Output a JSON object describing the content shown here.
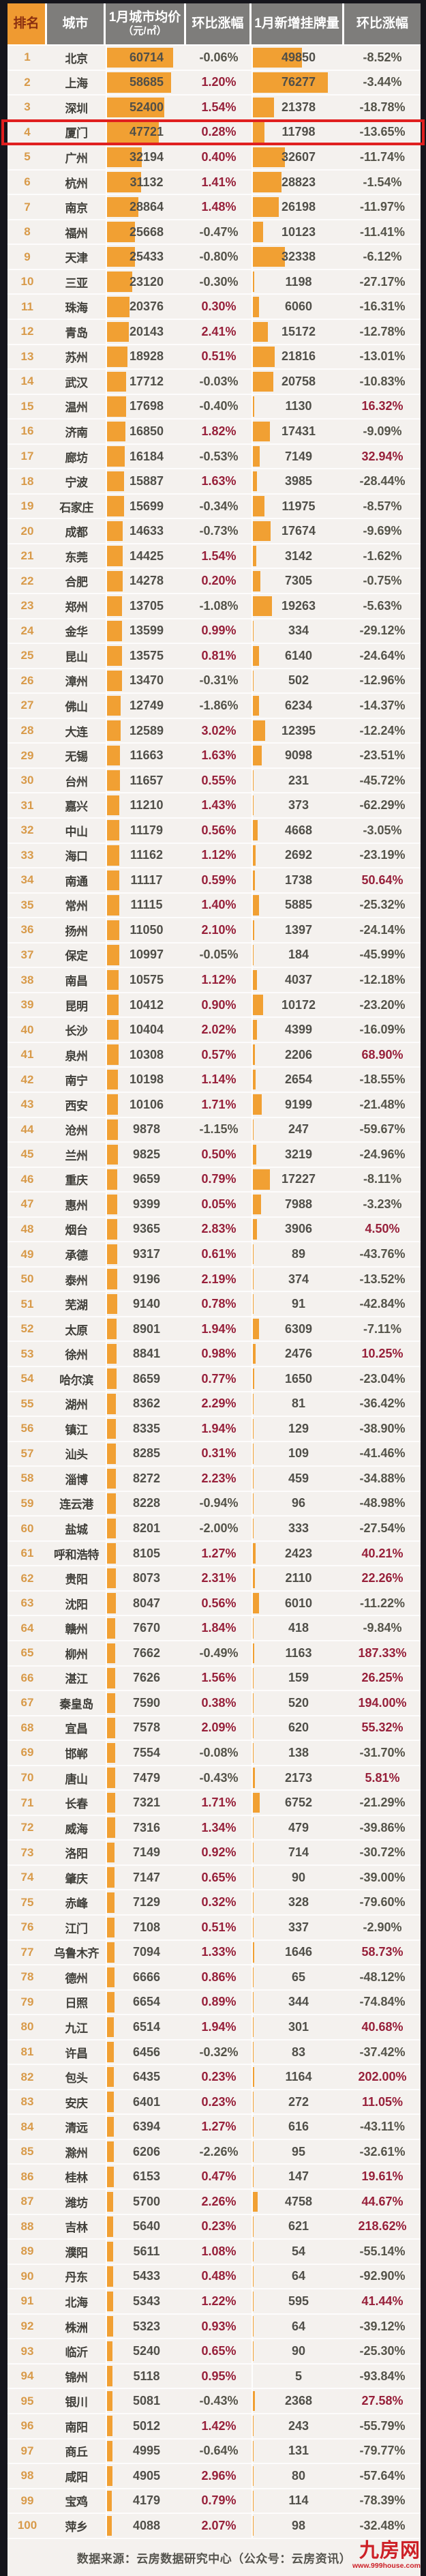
{
  "table": {
    "header": [
      {
        "label": "排名"
      },
      {
        "label": "城市"
      },
      {
        "label": "1月城市均价",
        "sub": "（元/㎡）"
      },
      {
        "label": "环比涨幅"
      },
      {
        "label": "1月新增挂牌量"
      },
      {
        "label": "环比涨幅"
      }
    ]
  },
  "chart_data": {
    "type": "table",
    "columns": [
      "排名",
      "城市",
      "1月城市均价(元/㎡)",
      "环比涨幅",
      "1月新增挂牌量",
      "环比涨幅"
    ],
    "highlighted_rank": 4,
    "rows": [
      [
        1,
        "北京",
        60714,
        "-0.06%",
        49850,
        "-8.52%"
      ],
      [
        2,
        "上海",
        58685,
        "1.20%",
        76277,
        "-3.44%"
      ],
      [
        3,
        "深圳",
        52400,
        "1.54%",
        21378,
        "-18.78%"
      ],
      [
        4,
        "厦门",
        47721,
        "0.28%",
        11798,
        "-13.65%"
      ],
      [
        5,
        "广州",
        32194,
        "0.40%",
        32607,
        "-11.74%"
      ],
      [
        6,
        "杭州",
        31132,
        "1.41%",
        28823,
        "-1.54%"
      ],
      [
        7,
        "南京",
        28864,
        "1.48%",
        26198,
        "-11.97%"
      ],
      [
        8,
        "福州",
        25668,
        "-0.47%",
        10123,
        "-11.41%"
      ],
      [
        9,
        "天津",
        25433,
        "-0.80%",
        32338,
        "-6.12%"
      ],
      [
        10,
        "三亚",
        23120,
        "-0.30%",
        1198,
        "-27.17%"
      ],
      [
        11,
        "珠海",
        20376,
        "0.30%",
        6060,
        "-16.31%"
      ],
      [
        12,
        "青岛",
        20143,
        "2.41%",
        15172,
        "-12.78%"
      ],
      [
        13,
        "苏州",
        18928,
        "0.51%",
        21816,
        "-13.01%"
      ],
      [
        14,
        "武汉",
        17712,
        "-0.03%",
        20758,
        "-10.83%"
      ],
      [
        15,
        "温州",
        17698,
        "-0.40%",
        1130,
        "16.32%"
      ],
      [
        16,
        "济南",
        16850,
        "1.82%",
        17431,
        "-9.09%"
      ],
      [
        17,
        "廊坊",
        16184,
        "-0.53%",
        7149,
        "32.94%"
      ],
      [
        18,
        "宁波",
        15887,
        "1.63%",
        3985,
        "-28.44%"
      ],
      [
        19,
        "石家庄",
        15699,
        "-0.34%",
        11975,
        "-8.57%"
      ],
      [
        20,
        "成都",
        14633,
        "-0.73%",
        17674,
        "-9.69%"
      ],
      [
        21,
        "东莞",
        14425,
        "1.54%",
        3142,
        "-1.62%"
      ],
      [
        22,
        "合肥",
        14278,
        "0.20%",
        7305,
        "-0.75%"
      ],
      [
        23,
        "郑州",
        13705,
        "-1.08%",
        19263,
        "-5.63%"
      ],
      [
        24,
        "金华",
        13599,
        "0.99%",
        334,
        "-29.12%"
      ],
      [
        25,
        "昆山",
        13575,
        "0.81%",
        6140,
        "-24.64%"
      ],
      [
        26,
        "漳州",
        13470,
        "-0.31%",
        502,
        "-12.96%"
      ],
      [
        27,
        "佛山",
        12749,
        "-1.86%",
        6234,
        "-14.37%"
      ],
      [
        28,
        "大连",
        12589,
        "3.02%",
        12395,
        "-12.24%"
      ],
      [
        29,
        "无锡",
        11663,
        "1.63%",
        9098,
        "-23.51%"
      ],
      [
        30,
        "台州",
        11657,
        "0.55%",
        231,
        "-45.72%"
      ],
      [
        31,
        "嘉兴",
        11210,
        "1.43%",
        373,
        "-62.29%"
      ],
      [
        32,
        "中山",
        11179,
        "0.56%",
        4668,
        "-3.05%"
      ],
      [
        33,
        "海口",
        11162,
        "1.12%",
        2692,
        "-23.19%"
      ],
      [
        34,
        "南通",
        11117,
        "0.59%",
        1738,
        "50.64%"
      ],
      [
        35,
        "常州",
        11115,
        "1.40%",
        5885,
        "-25.32%"
      ],
      [
        36,
        "扬州",
        11050,
        "2.10%",
        1397,
        "-24.14%"
      ],
      [
        37,
        "保定",
        10997,
        "-0.05%",
        184,
        "-45.99%"
      ],
      [
        38,
        "南昌",
        10575,
        "1.12%",
        4037,
        "-12.18%"
      ],
      [
        39,
        "昆明",
        10412,
        "0.90%",
        10172,
        "-23.20%"
      ],
      [
        40,
        "长沙",
        10404,
        "2.02%",
        4399,
        "-16.09%"
      ],
      [
        41,
        "泉州",
        10308,
        "0.57%",
        2206,
        "68.90%"
      ],
      [
        42,
        "南宁",
        10198,
        "1.14%",
        2654,
        "-18.55%"
      ],
      [
        43,
        "西安",
        10106,
        "1.71%",
        9199,
        "-21.48%"
      ],
      [
        44,
        "沧州",
        9878,
        "-1.15%",
        247,
        "-59.67%"
      ],
      [
        45,
        "兰州",
        9825,
        "0.50%",
        3219,
        "-24.96%"
      ],
      [
        46,
        "重庆",
        9659,
        "0.79%",
        17227,
        "-8.11%"
      ],
      [
        47,
        "惠州",
        9399,
        "0.05%",
        7988,
        "-3.23%"
      ],
      [
        48,
        "烟台",
        9365,
        "2.83%",
        3906,
        "4.50%"
      ],
      [
        49,
        "承德",
        9317,
        "0.61%",
        89,
        "-43.76%"
      ],
      [
        50,
        "泰州",
        9196,
        "2.19%",
        374,
        "-13.52%"
      ],
      [
        51,
        "芜湖",
        9140,
        "0.78%",
        91,
        "-42.84%"
      ],
      [
        52,
        "太原",
        8901,
        "1.94%",
        6309,
        "-7.11%"
      ],
      [
        53,
        "徐州",
        8841,
        "0.98%",
        2476,
        "10.25%"
      ],
      [
        54,
        "哈尔滨",
        8659,
        "0.77%",
        1650,
        "-23.04%"
      ],
      [
        55,
        "湖州",
        8362,
        "2.29%",
        81,
        "-36.42%"
      ],
      [
        56,
        "镇江",
        8335,
        "1.94%",
        129,
        "-38.90%"
      ],
      [
        57,
        "汕头",
        8285,
        "0.31%",
        109,
        "-41.46%"
      ],
      [
        58,
        "淄博",
        8272,
        "2.23%",
        459,
        "-34.88%"
      ],
      [
        59,
        "连云港",
        8228,
        "-0.94%",
        96,
        "-48.98%"
      ],
      [
        60,
        "盐城",
        8201,
        "-2.00%",
        333,
        "-27.54%"
      ],
      [
        61,
        "呼和浩特",
        8105,
        "1.27%",
        2423,
        "40.21%"
      ],
      [
        62,
        "贵阳",
        8073,
        "2.31%",
        2110,
        "22.26%"
      ],
      [
        63,
        "沈阳",
        8047,
        "0.56%",
        6010,
        "-11.22%"
      ],
      [
        64,
        "赣州",
        7670,
        "1.84%",
        418,
        "-9.84%"
      ],
      [
        65,
        "柳州",
        7662,
        "-0.49%",
        1163,
        "187.33%"
      ],
      [
        66,
        "湛江",
        7626,
        "1.56%",
        159,
        "26.25%"
      ],
      [
        67,
        "秦皇岛",
        7590,
        "0.38%",
        520,
        "194.00%"
      ],
      [
        68,
        "宜昌",
        7578,
        "2.09%",
        620,
        "55.32%"
      ],
      [
        69,
        "邯郸",
        7554,
        "-0.08%",
        138,
        "-31.70%"
      ],
      [
        70,
        "唐山",
        7479,
        "-0.43%",
        2173,
        "5.81%"
      ],
      [
        71,
        "长春",
        7321,
        "1.71%",
        6752,
        "-21.29%"
      ],
      [
        72,
        "威海",
        7316,
        "1.34%",
        479,
        "-39.86%"
      ],
      [
        73,
        "洛阳",
        7149,
        "0.92%",
        714,
        "-30.72%"
      ],
      [
        74,
        "肇庆",
        7147,
        "0.65%",
        90,
        "-39.00%"
      ],
      [
        75,
        "赤峰",
        7129,
        "0.32%",
        328,
        "-79.60%"
      ],
      [
        76,
        "江门",
        7108,
        "0.51%",
        337,
        "-2.90%"
      ],
      [
        77,
        "乌鲁木齐",
        7094,
        "1.33%",
        1646,
        "58.73%"
      ],
      [
        78,
        "德州",
        6666,
        "0.86%",
        65,
        "-48.12%"
      ],
      [
        79,
        "日照",
        6654,
        "0.89%",
        344,
        "-74.84%"
      ],
      [
        80,
        "九江",
        6514,
        "1.94%",
        301,
        "40.68%"
      ],
      [
        81,
        "许昌",
        6456,
        "-0.32%",
        83,
        "-37.42%"
      ],
      [
        82,
        "包头",
        6435,
        "0.23%",
        1164,
        "202.00%"
      ],
      [
        83,
        "安庆",
        6401,
        "0.23%",
        272,
        "11.05%"
      ],
      [
        84,
        "清远",
        6394,
        "1.27%",
        616,
        "-43.11%"
      ],
      [
        85,
        "滁州",
        6206,
        "-2.26%",
        95,
        "-32.61%"
      ],
      [
        86,
        "桂林",
        6153,
        "0.47%",
        147,
        "19.61%"
      ],
      [
        87,
        "潍坊",
        5700,
        "2.26%",
        4758,
        "44.67%"
      ],
      [
        88,
        "吉林",
        5640,
        "0.23%",
        621,
        "218.62%"
      ],
      [
        89,
        "濮阳",
        5611,
        "1.08%",
        54,
        "-55.14%"
      ],
      [
        90,
        "丹东",
        5433,
        "0.48%",
        64,
        "-92.90%"
      ],
      [
        91,
        "北海",
        5343,
        "1.22%",
        595,
        "41.44%"
      ],
      [
        92,
        "株洲",
        5323,
        "0.93%",
        64,
        "-39.12%"
      ],
      [
        93,
        "临沂",
        5240,
        "0.65%",
        90,
        "-25.30%"
      ],
      [
        94,
        "锦州",
        5118,
        "0.95%",
        5,
        "-93.84%"
      ],
      [
        95,
        "银川",
        5081,
        "-0.43%",
        2368,
        "27.58%"
      ],
      [
        96,
        "南阳",
        5012,
        "1.42%",
        243,
        "-55.79%"
      ],
      [
        97,
        "商丘",
        4995,
        "-0.64%",
        131,
        "-79.77%"
      ],
      [
        98,
        "咸阳",
        4905,
        "2.96%",
        80,
        "-57.64%"
      ],
      [
        99,
        "宝鸡",
        4179,
        "0.79%",
        114,
        "-78.39%"
      ],
      [
        100,
        "萍乡",
        4088,
        "2.07%",
        98,
        "-32.48%"
      ]
    ]
  },
  "footer": {
    "source": "数据来源：云房数据研究中心（公众号：云房资讯）",
    "logo": "九房网",
    "logo_url": "www.999house.com"
  },
  "colors": {
    "frame": "#15151c",
    "headgray": "#7e7d7b",
    "headorange": "#ef9a31",
    "headtext": "#8a2f10",
    "rowbg": "#f4f1ee",
    "bar": "#f1a033",
    "rankcolor": "#d89a49",
    "citycolor": "#403f3a",
    "valcolor": "#504f49",
    "pos": "#97203a",
    "neg": "#55544a",
    "hlred": "#e01f1f",
    "source": "#55544e",
    "logored": "#cd2127"
  }
}
